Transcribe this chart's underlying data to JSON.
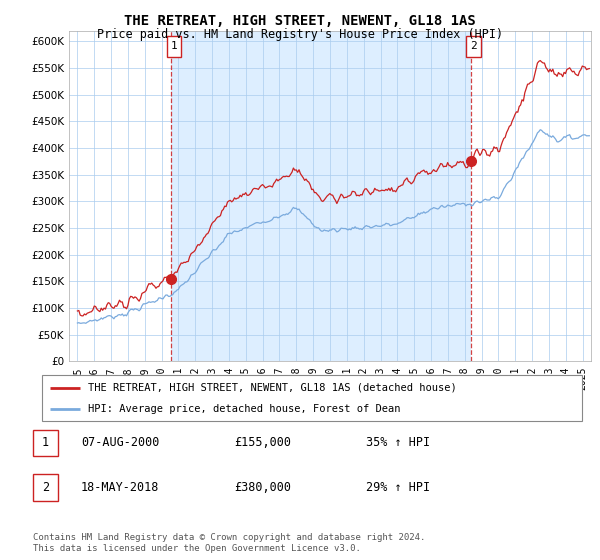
{
  "title": "THE RETREAT, HIGH STREET, NEWENT, GL18 1AS",
  "subtitle": "Price paid vs. HM Land Registry's House Price Index (HPI)",
  "legend_line1": "THE RETREAT, HIGH STREET, NEWENT, GL18 1AS (detached house)",
  "legend_line2": "HPI: Average price, detached house, Forest of Dean",
  "sale1_date": "07-AUG-2000",
  "sale1_price": "£155,000",
  "sale1_hpi": "35% ↑ HPI",
  "sale2_date": "18-MAY-2018",
  "sale2_price": "£380,000",
  "sale2_hpi": "29% ↑ HPI",
  "copyright": "Contains HM Land Registry data © Crown copyright and database right 2024.\nThis data is licensed under the Open Government Licence v3.0.",
  "red_color": "#cc2222",
  "blue_color": "#7aaadd",
  "bg_fill_color": "#ddeeff",
  "sale1_year": 2000.58,
  "sale2_year": 2018.37,
  "sale1_price_val": 155000,
  "sale2_price_val": 380000,
  "ylim_min": 0,
  "ylim_max": 620000,
  "xlim_min": 1994.5,
  "xlim_max": 2025.5,
  "yticks": [
    0,
    50000,
    100000,
    150000,
    200000,
    250000,
    300000,
    350000,
    400000,
    450000,
    500000,
    550000,
    600000
  ],
  "xtick_years": [
    1995,
    1996,
    1997,
    1998,
    1999,
    2000,
    2001,
    2002,
    2003,
    2004,
    2005,
    2006,
    2007,
    2008,
    2009,
    2010,
    2011,
    2012,
    2013,
    2014,
    2015,
    2016,
    2017,
    2018,
    2019,
    2020,
    2021,
    2022,
    2023,
    2024,
    2025
  ]
}
